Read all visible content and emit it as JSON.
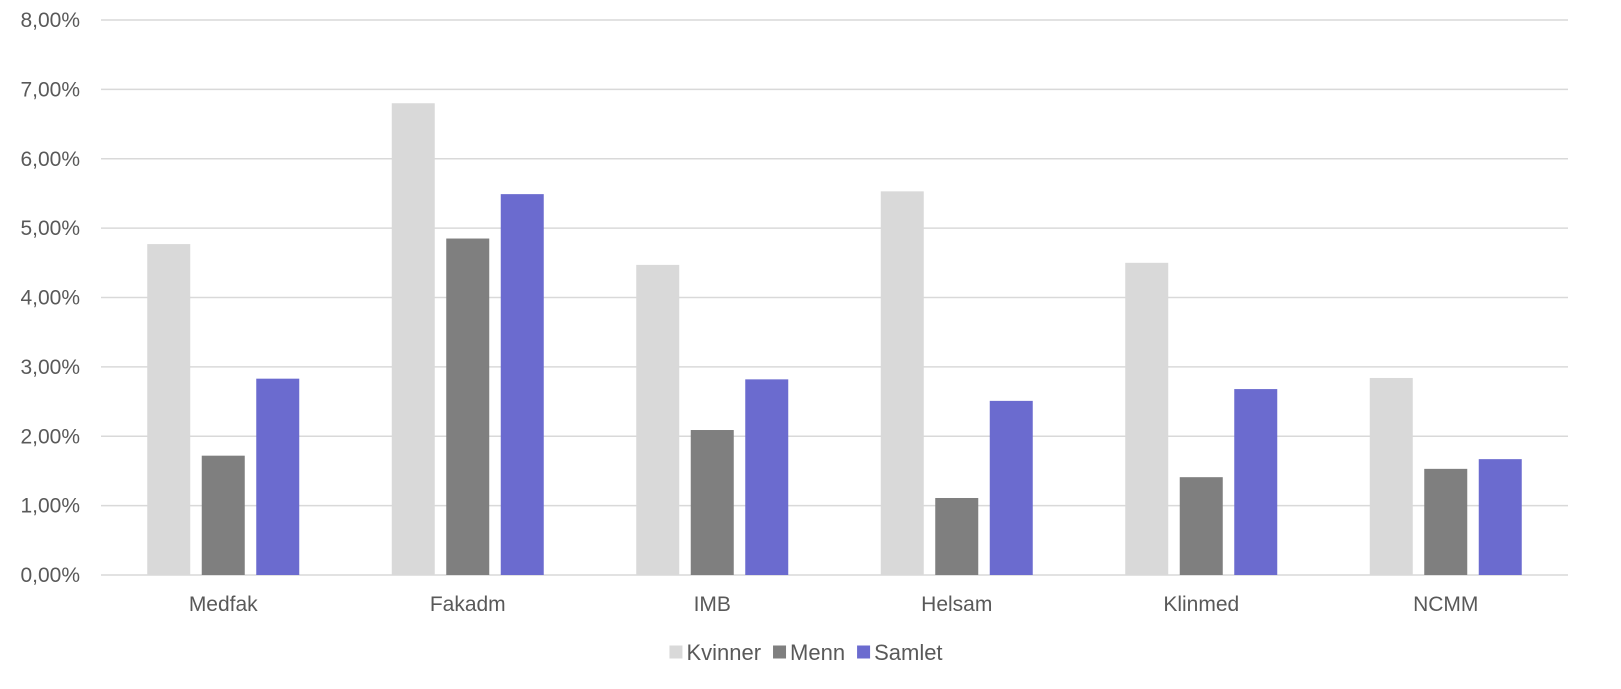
{
  "chart_data": {
    "type": "bar",
    "categories": [
      "Medfak",
      "Fakadm",
      "IMB",
      "Helsam",
      "Klinmed",
      "NCMM"
    ],
    "series": [
      {
        "name": "Kvinner",
        "color": "#d9d9d9",
        "values": [
          4.77,
          6.8,
          4.47,
          5.53,
          4.5,
          2.84
        ]
      },
      {
        "name": "Menn",
        "color": "#7f7f7f",
        "values": [
          1.72,
          4.85,
          2.09,
          1.11,
          1.41,
          1.53
        ]
      },
      {
        "name": "Samlet",
        "color": "#6b6bcf",
        "values": [
          2.83,
          5.49,
          2.82,
          2.51,
          2.68,
          1.67
        ]
      }
    ],
    "y_ticks": [
      "0,00%",
      "1,00%",
      "2,00%",
      "3,00%",
      "4,00%",
      "5,00%",
      "6,00%",
      "7,00%",
      "8,00%"
    ],
    "ylim": [
      0,
      8
    ],
    "title": "",
    "xlabel": "",
    "ylabel": "",
    "grid": true,
    "legend_position": "bottom-center",
    "gridline_color": "#d9d9d9"
  }
}
